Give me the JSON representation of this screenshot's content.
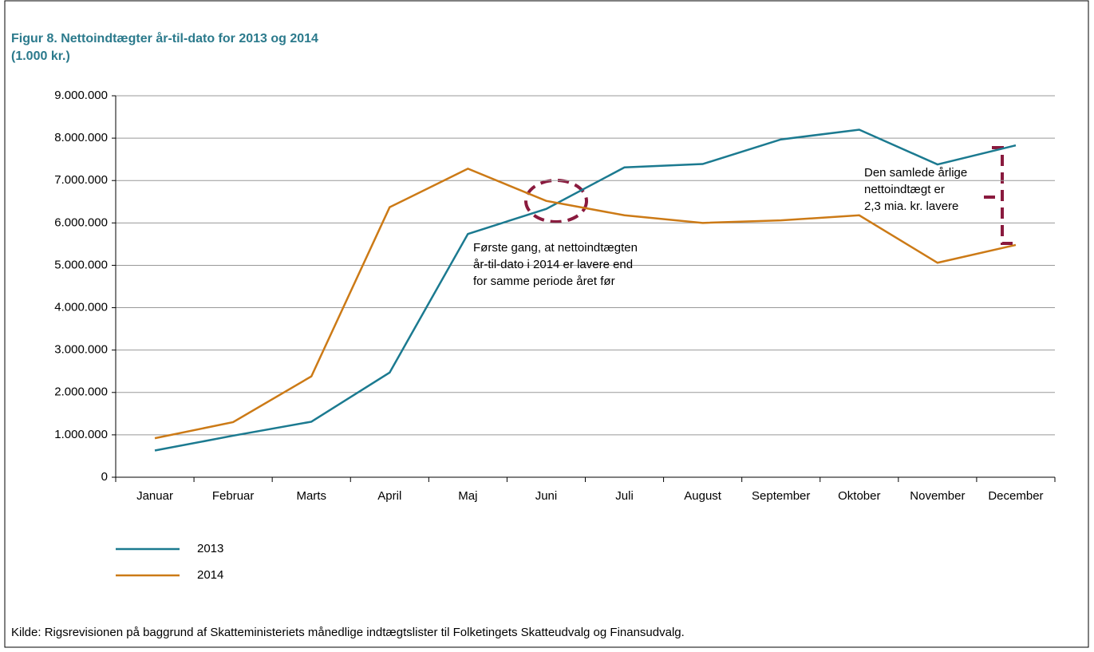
{
  "chart_data": {
    "type": "line",
    "title": "Figur 8. Nettoindtægter år-til-dato for 2013 og 2014",
    "subtitle": "(1.000 kr.)",
    "categories": [
      "Januar",
      "Februar",
      "Marts",
      "April",
      "Maj",
      "Juni",
      "Juli",
      "August",
      "September",
      "Oktober",
      "November",
      "December"
    ],
    "series": [
      {
        "name": "2013",
        "color": "#1b7a90",
        "values": [
          630000,
          980000,
          1310000,
          2470000,
          5740000,
          6330000,
          7310000,
          7390000,
          7970000,
          8200000,
          7380000,
          7830000
        ]
      },
      {
        "name": "2014",
        "color": "#cc7a16",
        "values": [
          920000,
          1300000,
          2380000,
          6370000,
          7280000,
          6520000,
          6180000,
          6000000,
          6060000,
          6180000,
          5060000,
          5480000
        ]
      }
    ],
    "ylim": [
      0,
      9000000
    ],
    "yticks": [
      0,
      {
        "value": 1000000,
        "label": "1.000.000"
      },
      {
        "value": 2000000,
        "label": "2.000.000"
      },
      {
        "value": 3000000,
        "label": "3.000.000"
      },
      {
        "value": 4000000,
        "label": "4.000.000"
      },
      {
        "value": 5000000,
        "label": "5.000.000"
      },
      {
        "value": 6000000,
        "label": "6.000.000"
      },
      {
        "value": 7000000,
        "label": "7.000.000"
      },
      {
        "value": 8000000,
        "label": "8.000.000"
      },
      {
        "value": 9000000,
        "label": "9.000.000"
      }
    ],
    "grid": true,
    "annotations": [
      [
        "Første gang, at nettoindtægten",
        "år-til-dato i 2014 er lavere end",
        "for samme periode året før"
      ],
      [
        "Den samlede årlige",
        "nettoindtægt er",
        "2,3 mia. kr. lavere"
      ]
    ],
    "source": "Kilde:  Rigsrevisionen på baggrund af Skatteministeriets månedlige indtægtslister til Folketingets Skatteudvalg og Finansudvalg."
  }
}
